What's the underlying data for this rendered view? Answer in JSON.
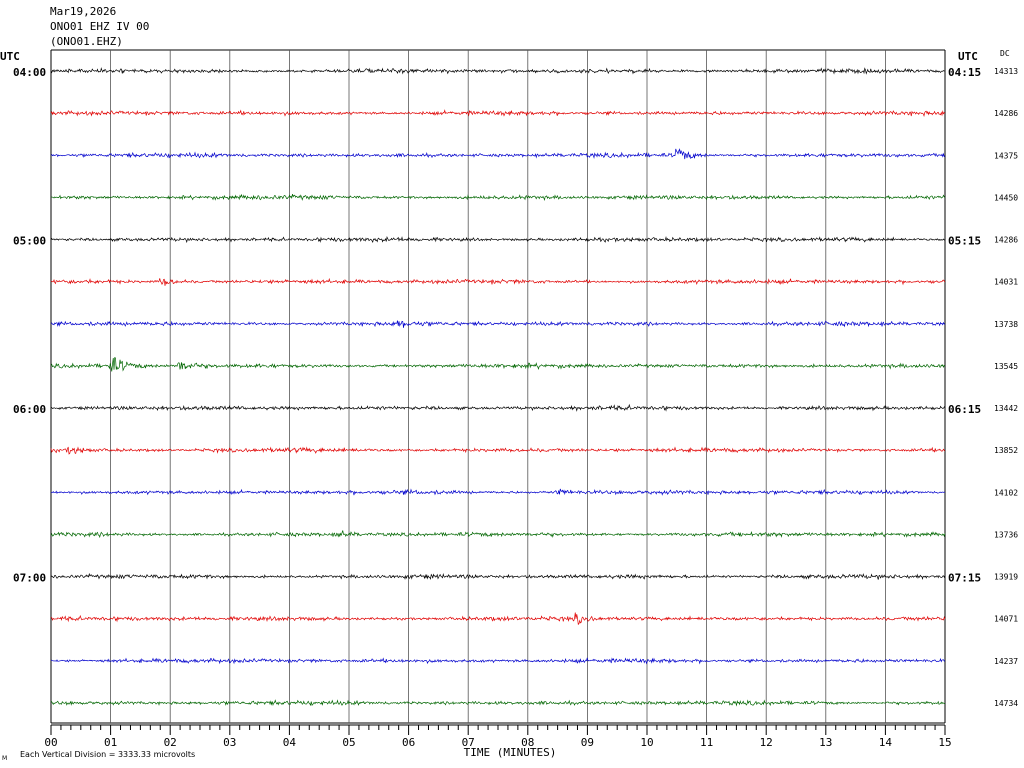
{
  "header": {
    "date": "Mar19,2026",
    "station": "ONO01 EHZ IV 00",
    "channel": "(ONO01.EHZ)"
  },
  "left_utc_label": "UTC",
  "right_utc_label": "UTC",
  "dc_label": "DC",
  "footer": {
    "scale_note": "Each Vertical Division = 3333.33 microvolts",
    "corner_mark": "M"
  },
  "chart_data": {
    "type": "line",
    "title": "",
    "xlabel": "TIME (MINUTES)",
    "ylabel": "",
    "xlim": [
      0,
      15
    ],
    "x_ticks": [
      "00",
      "01",
      "02",
      "03",
      "04",
      "05",
      "06",
      "07",
      "08",
      "09",
      "10",
      "11",
      "12",
      "13",
      "14",
      "15"
    ],
    "grid": true,
    "trace_colors": [
      "#000000",
      "#e00000",
      "#0000cc",
      "#006600"
    ],
    "left_time_labels": [
      {
        "row": 0,
        "text": "04:00"
      },
      {
        "row": 4,
        "text": "05:00"
      },
      {
        "row": 8,
        "text": "06:00"
      },
      {
        "row": 12,
        "text": "07:00"
      }
    ],
    "right_time_labels": [
      {
        "row": 0,
        "text": "04:15"
      },
      {
        "row": 4,
        "text": "05:15"
      },
      {
        "row": 8,
        "text": "06:15"
      },
      {
        "row": 12,
        "text": "07:15"
      }
    ],
    "dc_offsets": [
      14313,
      14286,
      14375,
      14450,
      14286,
      14031,
      13738,
      13545,
      13442,
      13852,
      14102,
      13736,
      13919,
      14071,
      14237,
      14734
    ],
    "events": [
      {
        "row": 2,
        "minute": 10.5,
        "amplitude": 14
      },
      {
        "row": 5,
        "minute": 1.85,
        "amplitude": 9
      },
      {
        "row": 6,
        "minute": 5.8,
        "amplitude": 7
      },
      {
        "row": 7,
        "minute": 1.0,
        "amplitude": 18
      },
      {
        "row": 7,
        "minute": 2.15,
        "amplitude": 12
      },
      {
        "row": 9,
        "minute": 0.3,
        "amplitude": 7
      },
      {
        "row": 10,
        "minute": 8.5,
        "amplitude": 7
      },
      {
        "row": 11,
        "minute": 4.8,
        "amplitude": 6
      },
      {
        "row": 13,
        "minute": 8.8,
        "amplitude": 8
      }
    ]
  }
}
